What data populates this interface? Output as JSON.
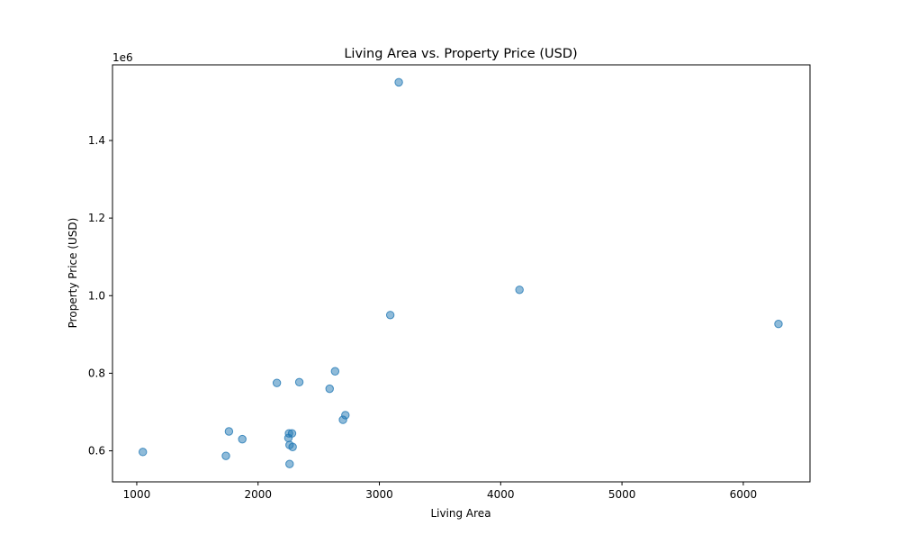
{
  "chart_data": {
    "type": "scatter",
    "title": "Living Area vs. Property Price (USD)",
    "xlabel": "Living Area",
    "ylabel": "Property Price (USD)",
    "y_offset_label": "1e6",
    "xlim": [
      800,
      6550
    ],
    "ylim": [
      520000,
      1595000
    ],
    "x_ticks": [
      1000,
      2000,
      3000,
      4000,
      5000,
      6000
    ],
    "x_tick_labels": [
      "1000",
      "2000",
      "3000",
      "4000",
      "5000",
      "6000"
    ],
    "y_ticks": [
      600000,
      800000,
      1000000,
      1200000,
      1400000
    ],
    "y_tick_labels": [
      "0.6",
      "0.8",
      "1.0",
      "1.2",
      "1.4"
    ],
    "grid": false,
    "legend": "none",
    "marker_color": "#1f77b4",
    "marker_alpha": 0.5,
    "points": [
      {
        "x": 3160,
        "y": 1550000
      },
      {
        "x": 4155,
        "y": 1015000
      },
      {
        "x": 3090,
        "y": 950000
      },
      {
        "x": 6290,
        "y": 927000
      },
      {
        "x": 2635,
        "y": 805000
      },
      {
        "x": 2155,
        "y": 775000
      },
      {
        "x": 2340,
        "y": 777000
      },
      {
        "x": 2590,
        "y": 760000
      },
      {
        "x": 2720,
        "y": 692000
      },
      {
        "x": 2700,
        "y": 680000
      },
      {
        "x": 1760,
        "y": 650000
      },
      {
        "x": 2255,
        "y": 645000
      },
      {
        "x": 2280,
        "y": 645000
      },
      {
        "x": 2250,
        "y": 633000
      },
      {
        "x": 1870,
        "y": 630000
      },
      {
        "x": 2260,
        "y": 615000
      },
      {
        "x": 2285,
        "y": 610000
      },
      {
        "x": 1050,
        "y": 597000
      },
      {
        "x": 1735,
        "y": 587000
      },
      {
        "x": 2260,
        "y": 566000
      }
    ]
  }
}
